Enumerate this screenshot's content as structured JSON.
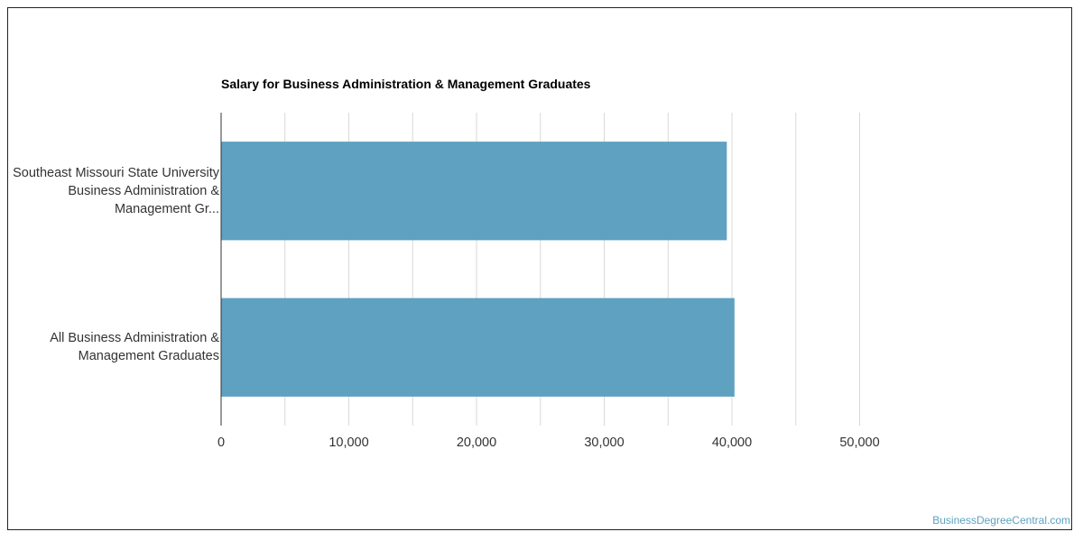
{
  "chart_data": {
    "type": "bar",
    "orientation": "horizontal",
    "title": "Salary for Business Administration & Management Graduates",
    "xlabel": "",
    "ylabel": "",
    "categories": [
      "Southeast Missouri State University Business Administration & Management Gr...",
      "All Business Administration & Management Graduates"
    ],
    "values": [
      39600,
      40200
    ],
    "xlim": [
      0,
      50000
    ],
    "ticks": [
      "0",
      "10,000",
      "20,000",
      "30,000",
      "40,000",
      "50,000"
    ],
    "tick_values": [
      0,
      10000,
      20000,
      30000,
      40000,
      50000
    ],
    "grid": true,
    "bar_color": "#5ea1c0",
    "grid_color": "#d9d9d9"
  },
  "watermark": "BusinessDegreeCentral.com"
}
